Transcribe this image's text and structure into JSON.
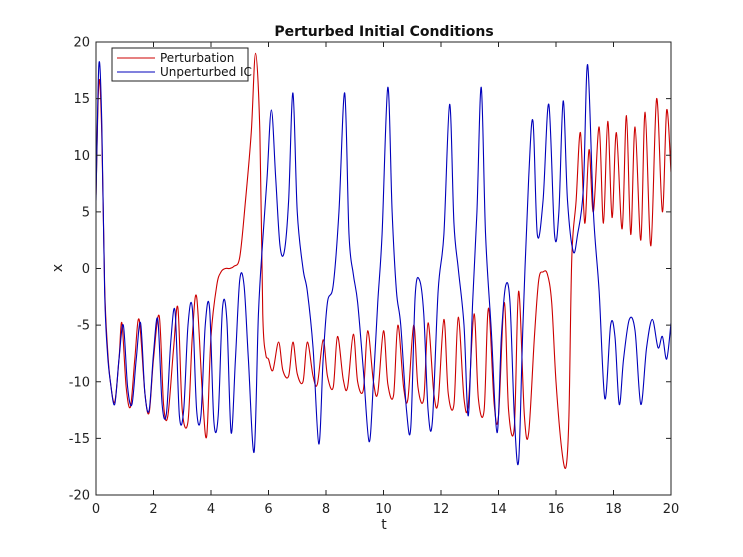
{
  "chart_data": {
    "type": "line",
    "title": "Perturbed Initial Conditions",
    "xlabel": "t",
    "ylabel": "x",
    "xlim": [
      0,
      20
    ],
    "ylim": [
      -20,
      20
    ],
    "xticks": [
      0,
      2,
      4,
      6,
      8,
      10,
      12,
      14,
      16,
      18,
      20
    ],
    "yticks": [
      -20,
      -15,
      -10,
      -5,
      0,
      5,
      10,
      15,
      20
    ],
    "grid": false,
    "legend_position": "top-left",
    "series": [
      {
        "name": "Perturbation",
        "color": "#cc0000",
        "x": [
          0,
          0.1,
          0.2,
          0.3,
          0.4,
          0.5,
          0.65,
          0.8,
          0.9,
          1.05,
          1.2,
          1.35,
          1.5,
          1.7,
          1.85,
          2.0,
          2.2,
          2.35,
          2.5,
          2.7,
          2.85,
          3.0,
          3.2,
          3.35,
          3.5,
          3.7,
          3.85,
          4.0,
          4.2,
          4.35,
          4.5,
          4.65,
          4.8,
          5.0,
          5.2,
          5.4,
          5.55,
          5.7,
          5.8,
          5.9,
          6.0,
          6.15,
          6.35,
          6.5,
          6.7,
          6.85,
          7.0,
          7.2,
          7.35,
          7.55,
          7.7,
          7.9,
          8.05,
          8.25,
          8.4,
          8.6,
          8.75,
          8.95,
          9.1,
          9.3,
          9.45,
          9.65,
          9.8,
          10.0,
          10.15,
          10.35,
          10.5,
          10.7,
          10.85,
          11.05,
          11.2,
          11.4,
          11.55,
          11.75,
          11.9,
          12.1,
          12.25,
          12.45,
          12.6,
          12.8,
          12.95,
          13.15,
          13.3,
          13.5,
          13.65,
          13.85,
          14.0,
          14.2,
          14.35,
          14.55,
          14.7,
          14.9,
          15.05,
          15.25,
          15.4,
          15.55,
          15.7,
          15.85,
          16.0,
          16.2,
          16.35,
          16.45,
          16.55,
          16.7,
          16.85,
          17.0,
          17.15,
          17.3,
          17.5,
          17.65,
          17.8,
          17.95,
          18.1,
          18.3,
          18.45,
          18.6,
          18.75,
          18.95,
          19.1,
          19.3,
          19.5,
          19.7,
          19.85,
          20.0
        ],
        "y": [
          6.5,
          16.5,
          12.0,
          -1.5,
          -7.0,
          -10.0,
          -11.8,
          -8.0,
          -4.8,
          -10.5,
          -12.2,
          -8.0,
          -4.5,
          -11.0,
          -12.7,
          -8.0,
          -4.2,
          -12.0,
          -13.0,
          -7.0,
          -3.5,
          -12.5,
          -13.5,
          -6.0,
          -2.5,
          -11.0,
          -14.8,
          -6.0,
          -1.5,
          -0.3,
          0.0,
          0.0,
          0.2,
          1.0,
          6.0,
          12.0,
          19.0,
          12.0,
          -4.0,
          -7.5,
          -8.0,
          -9.0,
          -6.5,
          -9.0,
          -9.5,
          -6.5,
          -9.3,
          -10.0,
          -6.5,
          -9.5,
          -10.2,
          -6.3,
          -9.5,
          -10.5,
          -6.0,
          -9.8,
          -10.5,
          -5.8,
          -10.0,
          -10.7,
          -5.5,
          -10.0,
          -11.0,
          -5.5,
          -10.2,
          -11.2,
          -5.0,
          -10.5,
          -11.5,
          -5.0,
          -10.5,
          -11.5,
          -4.8,
          -11.0,
          -11.8,
          -4.5,
          -11.0,
          -12.0,
          -4.3,
          -11.5,
          -12.0,
          -4.0,
          -11.5,
          -12.5,
          -3.5,
          -12.0,
          -13.0,
          -3.0,
          -12.5,
          -14.0,
          -2.0,
          -13.0,
          -14.5,
          -6.0,
          -1.0,
          -0.3,
          -0.5,
          -3.0,
          -10.0,
          -16.0,
          -17.5,
          -13.0,
          1.0,
          6.0,
          12.0,
          4.0,
          10.5,
          5.0,
          12.5,
          4.0,
          13.0,
          4.5,
          12.0,
          3.5,
          13.5,
          3.0,
          12.5,
          2.5,
          13.8,
          2.0,
          15.0,
          5.0,
          14.0,
          8.5
        ]
      },
      {
        "name": "Unperturbed IC",
        "color": "#0000bb",
        "x": [
          0,
          0.1,
          0.2,
          0.3,
          0.4,
          0.5,
          0.65,
          0.8,
          0.95,
          1.1,
          1.25,
          1.4,
          1.55,
          1.7,
          1.85,
          2.0,
          2.15,
          2.3,
          2.45,
          2.6,
          2.75,
          2.9,
          3.05,
          3.2,
          3.35,
          3.5,
          3.65,
          3.8,
          3.95,
          4.1,
          4.25,
          4.4,
          4.55,
          4.7,
          4.85,
          5.0,
          5.15,
          5.3,
          5.5,
          5.65,
          5.8,
          5.95,
          6.1,
          6.25,
          6.4,
          6.55,
          6.7,
          6.85,
          7.0,
          7.2,
          7.35,
          7.55,
          7.75,
          7.9,
          8.05,
          8.25,
          8.45,
          8.65,
          8.8,
          8.95,
          9.1,
          9.3,
          9.5,
          9.65,
          9.8,
          9.95,
          10.15,
          10.3,
          10.45,
          10.6,
          10.8,
          10.95,
          11.1,
          11.25,
          11.4,
          11.55,
          11.7,
          11.9,
          12.1,
          12.3,
          12.45,
          12.6,
          12.8,
          12.95,
          13.1,
          13.25,
          13.4,
          13.55,
          13.75,
          13.95,
          14.1,
          14.25,
          14.4,
          14.55,
          14.7,
          14.85,
          15.05,
          15.2,
          15.35,
          15.55,
          15.75,
          15.95,
          16.1,
          16.25,
          16.4,
          16.6,
          16.75,
          16.95,
          17.1,
          17.3,
          17.5,
          17.7,
          17.9,
          18.05,
          18.2,
          18.35,
          18.55,
          18.75,
          18.95,
          19.15,
          19.35,
          19.55,
          19.7,
          19.85,
          20.0
        ],
        "y": [
          6.0,
          18.0,
          13.0,
          -2.0,
          -7.5,
          -10.0,
          -12.0,
          -8.0,
          -5.0,
          -10.5,
          -12.0,
          -8.0,
          -4.8,
          -11.0,
          -12.5,
          -7.5,
          -4.5,
          -12.0,
          -12.8,
          -6.5,
          -3.8,
          -13.0,
          -12.5,
          -5.0,
          -3.5,
          -12.5,
          -13.0,
          -5.0,
          -3.5,
          -13.5,
          -13.0,
          -3.5,
          -4.5,
          -14.5,
          -8.0,
          -1.0,
          -1.5,
          -8.0,
          -16.2,
          -4.0,
          2.5,
          8.0,
          14.0,
          8.0,
          2.0,
          1.5,
          6.0,
          15.5,
          5.0,
          0.0,
          -2.0,
          -7.0,
          -15.5,
          -8.0,
          -3.0,
          -1.5,
          5.0,
          15.5,
          3.0,
          -0.5,
          -3.0,
          -9.0,
          -15.3,
          -10.0,
          -3.0,
          3.0,
          16.0,
          5.0,
          -2.0,
          -5.0,
          -12.5,
          -14.0,
          -2.5,
          -1.0,
          -4.0,
          -12.5,
          -13.5,
          -2.0,
          3.0,
          14.5,
          4.0,
          0.0,
          -5.0,
          -13.0,
          -3.0,
          5.0,
          16.0,
          3.0,
          -5.5,
          -14.5,
          -6.0,
          -1.5,
          -3.0,
          -13.0,
          -17.0,
          -5.0,
          8.0,
          13.0,
          3.0,
          6.0,
          14.5,
          3.0,
          5.0,
          14.8,
          6.0,
          1.5,
          3.0,
          7.0,
          18.0,
          5.0,
          -2.0,
          -11.5,
          -5.0,
          -6.0,
          -12.0,
          -8.0,
          -4.5,
          -5.5,
          -12.0,
          -7.0,
          -4.5,
          -7.0,
          -6.0,
          -8.0,
          -4.8
        ]
      }
    ]
  }
}
